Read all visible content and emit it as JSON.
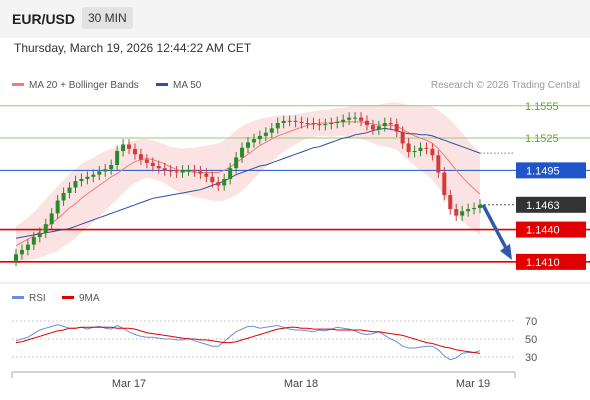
{
  "header": {
    "pair": "EUR/USD",
    "timeframe": "30 MIN",
    "datetime": "Thursday, March 19, 2026 12:44:22 AM CET",
    "credit": "Research © 2026 Trading Central"
  },
  "legend": {
    "ma20": "MA 20 + Bollinger Bands",
    "ma50": "MA 50",
    "rsi": "RSI",
    "ma9": "9MA"
  },
  "colors": {
    "ma20": "#f07a7a",
    "ma50": "#2f4f9e",
    "band": "#fbd9d9",
    "resistance": "#96c878",
    "pivot": "#1f55c9",
    "support": "#e00000",
    "last": "#333333",
    "rsi": "#6a8de0",
    "rsi_ma": "#e00000",
    "up": "#2a8a2a",
    "down": "#d43a3a",
    "arrow": "#2e5aa8"
  },
  "chart_data": [
    {
      "type": "candlestick",
      "title": "EUR/USD",
      "x_ticks": [
        "Mar 17",
        "Mar 18",
        "Mar 19"
      ],
      "ylim": [
        1.1395,
        1.1565
      ],
      "levels": [
        {
          "value": 1.1555,
          "label": "1.1555",
          "kind": "resistance"
        },
        {
          "value": 1.1525,
          "label": "1.1525",
          "kind": "resistance"
        },
        {
          "value": 1.1495,
          "label": "1.1495",
          "kind": "pivot"
        },
        {
          "value": 1.1463,
          "label": "1.1463",
          "kind": "last"
        },
        {
          "value": 1.144,
          "label": "1.1440",
          "kind": "support"
        },
        {
          "value": 1.141,
          "label": "1.1410",
          "kind": "support"
        }
      ],
      "forecast_target": 1.141,
      "close": [
        1.1417,
        1.1421,
        1.1426,
        1.1433,
        1.1437,
        1.1445,
        1.1455,
        1.1467,
        1.1474,
        1.1479,
        1.1485,
        1.1487,
        1.1489,
        1.1491,
        1.1494,
        1.1496,
        1.15,
        1.1513,
        1.1519,
        1.1515,
        1.151,
        1.1505,
        1.1502,
        1.1499,
        1.1497,
        1.1495,
        1.1494,
        1.1493,
        1.1495,
        1.1495,
        1.1494,
        1.1492,
        1.1489,
        1.1484,
        1.1481,
        1.1487,
        1.1497,
        1.1507,
        1.1516,
        1.1521,
        1.1524,
        1.1527,
        1.153,
        1.1534,
        1.1539,
        1.1541,
        1.1541,
        1.154,
        1.1539,
        1.1539,
        1.1538,
        1.1537,
        1.1538,
        1.1539,
        1.154,
        1.1542,
        1.1544,
        1.1544,
        1.1541,
        1.1537,
        1.1533,
        1.1536,
        1.1539,
        1.1538,
        1.1531,
        1.152,
        1.1512,
        1.1513,
        1.1516,
        1.1515,
        1.1509,
        1.1493,
        1.1472,
        1.1459,
        1.1453,
        1.1457,
        1.1459,
        1.146,
        1.1463
      ],
      "ma20": [
        1.1425,
        1.1428,
        1.1431,
        1.1434,
        1.1438,
        1.1442,
        1.1446,
        1.145,
        1.1455,
        1.146,
        1.1464,
        1.1469,
        1.1473,
        1.1477,
        1.1481,
        1.1485,
        1.1489,
        1.1492,
        1.1496,
        1.15,
        1.1503,
        1.1505,
        1.1506,
        1.1505,
        1.1503,
        1.1501,
        1.1498,
        1.1496,
        1.1494,
        1.1494,
        1.1493,
        1.1493,
        1.1493,
        1.1493,
        1.1493,
        1.1495,
        1.1498,
        1.1502,
        1.1506,
        1.151,
        1.1514,
        1.1518,
        1.1521,
        1.1524,
        1.1527,
        1.1529,
        1.1531,
        1.1533,
        1.1535,
        1.1537,
        1.1538,
        1.1539,
        1.1539,
        1.1539,
        1.154,
        1.154,
        1.154,
        1.154,
        1.154,
        1.1539,
        1.1538,
        1.1537,
        1.1537,
        1.1537,
        1.1536,
        1.1533,
        1.153,
        1.1527,
        1.1525,
        1.1523,
        1.152,
        1.1515,
        1.1509,
        1.1502,
        1.1495,
        1.1489,
        1.1483,
        1.1478,
        1.1473
      ],
      "ma50": [
        1.1432,
        1.1433,
        1.1434,
        1.1435,
        1.1436,
        1.1437,
        1.1438,
        1.1439,
        1.144,
        1.1441,
        1.1443,
        1.1445,
        1.1447,
        1.1449,
        1.1451,
        1.1453,
        1.1455,
        1.1457,
        1.1459,
        1.1461,
        1.1463,
        1.1465,
        1.1467,
        1.1469,
        1.147,
        1.1471,
        1.1472,
        1.1473,
        1.1474,
        1.1475,
        1.1476,
        1.1477,
        1.1479,
        1.1481,
        1.1483,
        1.1485,
        1.1488,
        1.1491,
        1.1493,
        1.1495,
        1.1497,
        1.1499,
        1.15,
        1.1502,
        1.1504,
        1.1506,
        1.1508,
        1.151,
        1.1512,
        1.1514,
        1.1516,
        1.1517,
        1.1519,
        1.1521,
        1.1523,
        1.1525,
        1.1526,
        1.1528,
        1.1529,
        1.153,
        1.1532,
        1.1533,
        1.1534,
        1.1533,
        1.1532,
        1.153,
        1.1529,
        1.1529,
        1.1528,
        1.1528,
        1.1527,
        1.1525,
        1.1523,
        1.1521,
        1.1519,
        1.1517,
        1.1515,
        1.1513,
        1.1511
      ],
      "band_width": [
        0.0018,
        0.0019,
        0.002,
        0.0022,
        0.0024,
        0.0026,
        0.0028,
        0.003,
        0.0031,
        0.0032,
        0.0032,
        0.0032,
        0.0031,
        0.003,
        0.0029,
        0.0028,
        0.0026,
        0.0024,
        0.0022,
        0.0021,
        0.002,
        0.0019,
        0.0018,
        0.0018,
        0.0018,
        0.0018,
        0.0019,
        0.002,
        0.0021,
        0.0022,
        0.0023,
        0.0024,
        0.0025,
        0.0026,
        0.0027,
        0.0028,
        0.0029,
        0.003,
        0.003,
        0.0029,
        0.0027,
        0.0025,
        0.0023,
        0.0021,
        0.0019,
        0.0017,
        0.0015,
        0.0014,
        0.0013,
        0.0012,
        0.0012,
        0.0012,
        0.0012,
        0.0013,
        0.0013,
        0.0013,
        0.0014,
        0.0015,
        0.0016,
        0.0017,
        0.0018,
        0.0019,
        0.002,
        0.0021,
        0.0022,
        0.0024,
        0.0026,
        0.0028,
        0.003,
        0.0032,
        0.0034,
        0.0036,
        0.0038,
        0.004,
        0.0041,
        0.0041,
        0.004,
        0.0039,
        0.0038
      ]
    },
    {
      "type": "line",
      "title": "RSI",
      "y_ticks": [
        70,
        50,
        30
      ],
      "ylim": [
        20,
        80
      ],
      "series": [
        {
          "name": "RSI",
          "values": [
            48,
            50,
            52,
            56,
            60,
            62,
            64,
            66,
            64,
            62,
            62,
            63,
            61,
            63,
            64,
            62,
            61,
            65,
            62,
            58,
            55,
            53,
            52,
            52,
            51,
            50,
            50,
            49,
            49,
            51,
            48,
            46,
            44,
            42,
            42,
            47,
            53,
            58,
            61,
            64,
            64,
            62,
            63,
            64,
            65,
            63,
            61,
            60,
            60,
            59,
            58,
            60,
            59,
            61,
            63,
            62,
            61,
            59,
            56,
            55,
            56,
            58,
            54,
            50,
            47,
            42,
            40,
            40,
            41,
            42,
            42,
            38,
            31,
            27,
            29,
            34,
            35,
            35,
            37
          ]
        },
        {
          "name": "9MA",
          "values": [
            46,
            47,
            49,
            51,
            53,
            55,
            57,
            59,
            60,
            62,
            62,
            63,
            63,
            63,
            63,
            63,
            63,
            62,
            62,
            62,
            61,
            59,
            57,
            56,
            55,
            54,
            53,
            52,
            51,
            50,
            50,
            49,
            49,
            48,
            47,
            46,
            46,
            47,
            49,
            51,
            53,
            55,
            57,
            59,
            61,
            62,
            63,
            63,
            62,
            62,
            61,
            61,
            61,
            61,
            60,
            60,
            60,
            60,
            60,
            59,
            58,
            58,
            57,
            56,
            55,
            54,
            52,
            50,
            48,
            46,
            45,
            43,
            41,
            40,
            38,
            37,
            36,
            35,
            34
          ]
        }
      ]
    }
  ]
}
